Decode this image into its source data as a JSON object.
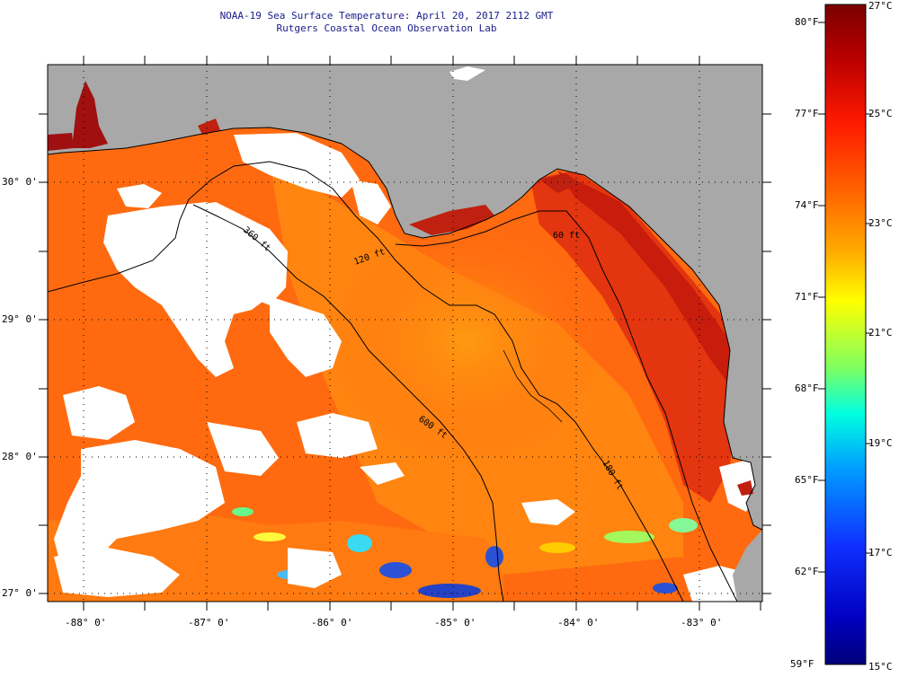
{
  "title_line1": "NOAA-19 Sea Surface Temperature:  April 20, 2017 2112 GMT",
  "title_line2": "Rutgers Coastal Ocean Observation Lab",
  "lat_labels": [
    "30° 0'",
    "29° 0'",
    "28° 0'",
    "27° 0'"
  ],
  "lon_labels": [
    "-88° 0'",
    "-87° 0'",
    "-86° 0'",
    "-85° 0'",
    "-84° 0'",
    "-83° 0'"
  ],
  "contour_labels": [
    "120 ft",
    "600 ft",
    "60 ft",
    "360 ft",
    "180 ft"
  ],
  "colorbar": {
    "f_labels": [
      "80°F",
      "77°F",
      "74°F",
      "71°F",
      "68°F",
      "65°F",
      "62°F",
      "59°F"
    ],
    "c_labels": [
      "27°C",
      "25°C",
      "23°C",
      "21°C",
      "19°C",
      "17°C",
      "15°C"
    ]
  },
  "colors": {
    "land": "#a8a8a8",
    "cloud": "#ffffff",
    "sea_warm": "#ff6a10",
    "sea_hot": "#e03010",
    "sea_near_shore": "#c81c0c",
    "sea_cool": "#2050e0",
    "title_text": "#1a1a8c"
  }
}
